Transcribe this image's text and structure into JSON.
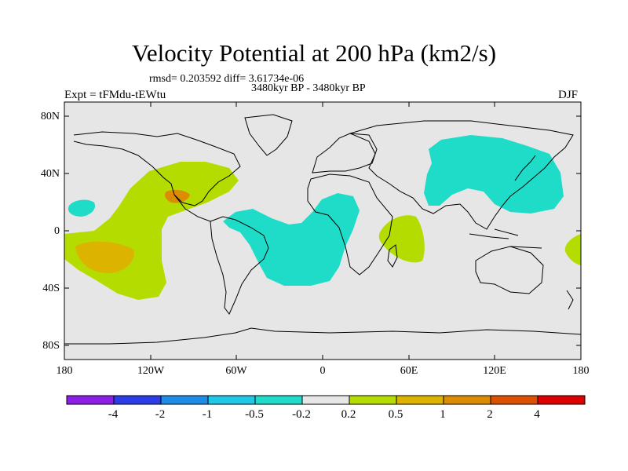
{
  "title": "Velocity Potential at 200 hPa (km2/s)",
  "stats": "rmsd= 0.203592  diff= 3.61734e-06",
  "period": "3480kyr BP - 3480kyr BP",
  "expt": "Expt = tFMdu-tEWtu",
  "season": "DJF",
  "lat_labels": [
    "80N",
    "40N",
    "0",
    "40S",
    "80S"
  ],
  "lon_labels": [
    "180",
    "120W",
    "60W",
    "0",
    "60E",
    "120E",
    "180"
  ],
  "colorbar": {
    "colors": [
      "#8c1ee6",
      "#2c3ce6",
      "#1e8ce6",
      "#1ec8e6",
      "#1edcc8",
      "#e6e6e6",
      "#b4dc00",
      "#dcb400",
      "#dc8c00",
      "#dc5000",
      "#dc0000"
    ],
    "labels": [
      "-4",
      "-2",
      "-1",
      "-0.5",
      "-0.2",
      "0.2",
      "0.5",
      "1",
      "2",
      "4"
    ]
  },
  "colors": {
    "ocean": "#e6e6e6",
    "negative": "#1edcc8",
    "positive": "#b4dc00",
    "strong_positive": "#dcb400",
    "peak": "#dc8c00"
  }
}
